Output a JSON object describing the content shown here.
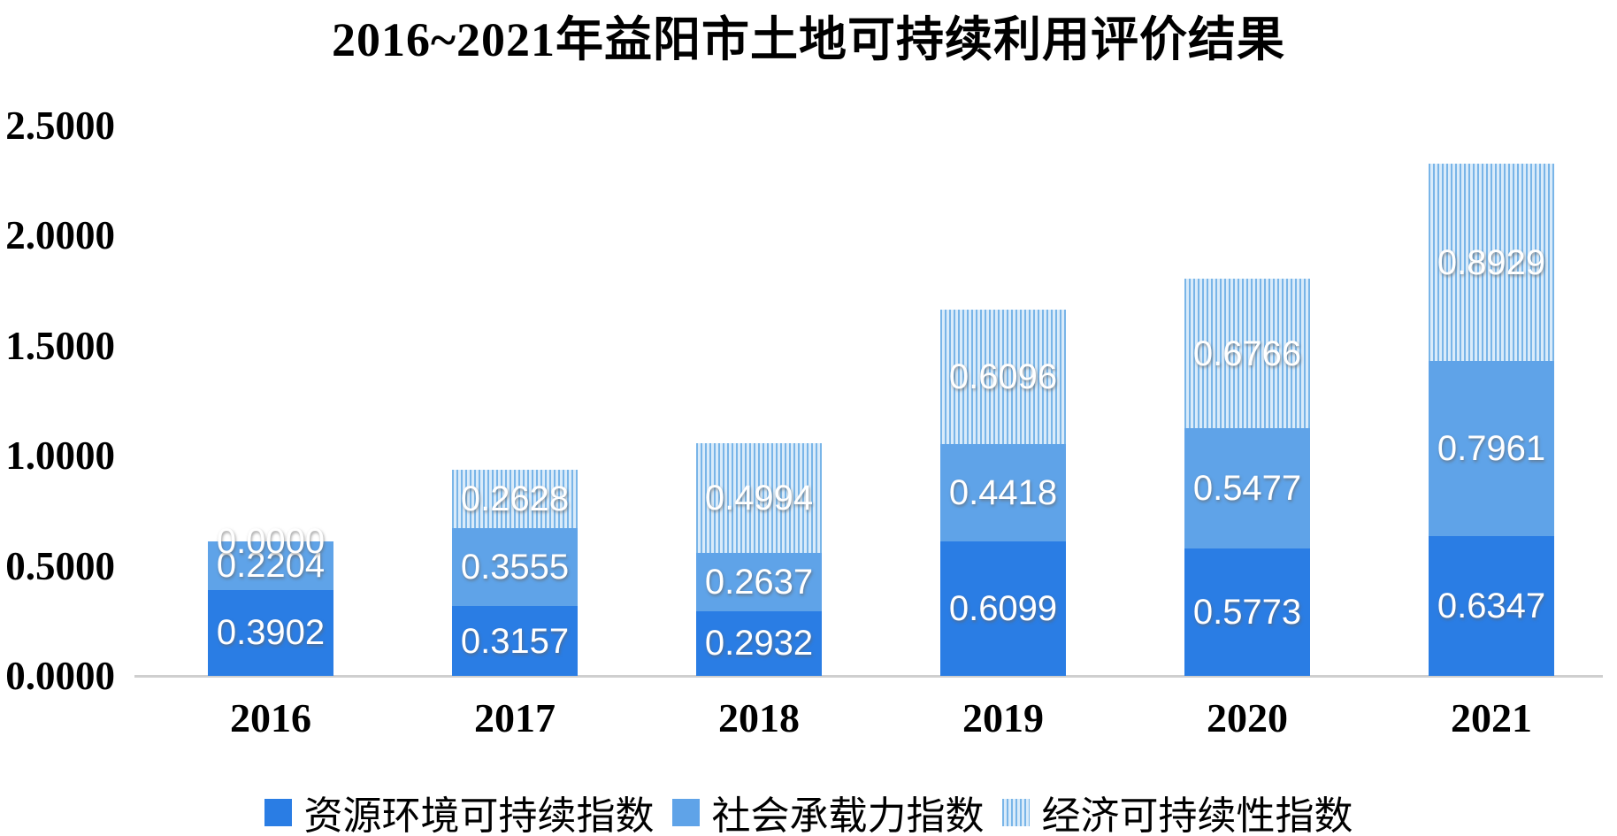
{
  "title": "2016~2021年益阳市土地可持续利用评价结果",
  "chart_data": {
    "type": "bar",
    "stacked": true,
    "title": "2016~2021年益阳市土地可持续利用评价结果",
    "categories": [
      "2016",
      "2017",
      "2018",
      "2019",
      "2020",
      "2021"
    ],
    "series": [
      {
        "name": "资源环境可持续指数",
        "color": "#2a7de4",
        "values": [
          0.3902,
          0.3157,
          0.2932,
          0.6099,
          0.5773,
          0.6347
        ]
      },
      {
        "name": "社会承载力指数",
        "color": "#5fa3e8",
        "values": [
          0.2204,
          0.3555,
          0.2637,
          0.4418,
          0.5477,
          0.7961
        ]
      },
      {
        "name": "经济可持续性指数",
        "color": "#aed3f2",
        "pattern": "vertical-stripes",
        "pattern_colors": [
          "#79b5e8",
          "#d9ebfa"
        ],
        "values": [
          0.0,
          0.2628,
          0.4994,
          0.6096,
          0.6766,
          0.8929
        ]
      }
    ],
    "yticks": [
      {
        "label": "0.0000",
        "value": 0.0
      },
      {
        "label": "0.5000",
        "value": 0.5
      },
      {
        "label": "1.0000",
        "value": 1.0
      },
      {
        "label": "1.5000",
        "value": 1.5
      },
      {
        "label": "2.0000",
        "value": 2.0
      },
      {
        "label": "2.5000",
        "value": 2.5
      }
    ],
    "ylim": [
      0,
      2.5
    ],
    "value_label_decimals": 4,
    "value_label_color": "#ffffff",
    "axis_line_color": "#cfcfcf",
    "legend_position": "bottom",
    "grid": false
  }
}
